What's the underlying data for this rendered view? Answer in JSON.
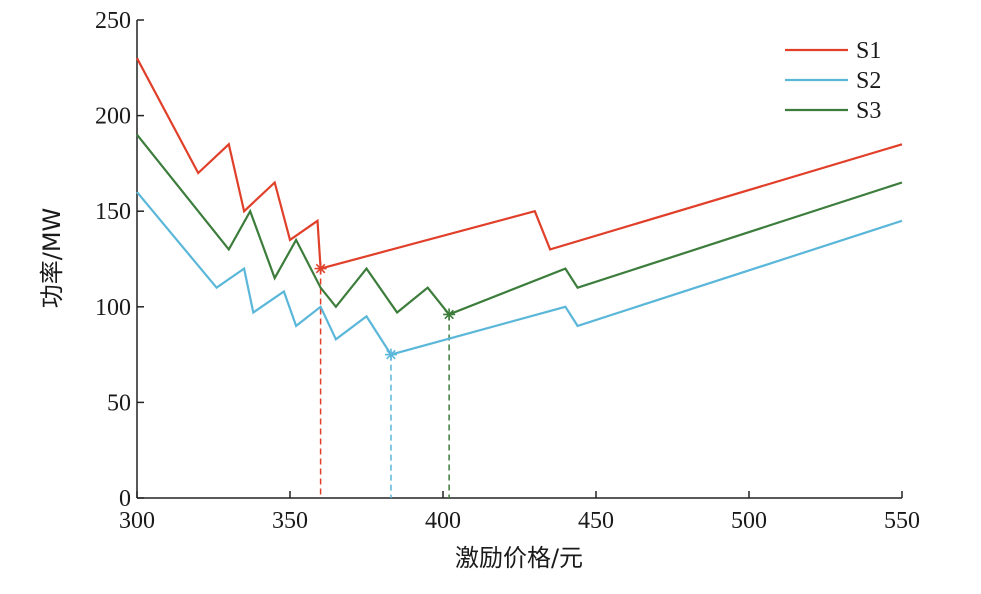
{
  "chart_data": {
    "type": "line",
    "xlabel": "激励价格/元",
    "ylabel": "功率/MW",
    "xlim": [
      300,
      550
    ],
    "ylim": [
      0,
      250
    ],
    "x_ticks": [
      300,
      350,
      400,
      450,
      500,
      550
    ],
    "y_ticks": [
      0,
      50,
      100,
      150,
      200,
      250
    ],
    "grid": false,
    "legend_position": "top-right",
    "series": [
      {
        "name": "S1",
        "color": "#e0402a",
        "points": [
          [
            300,
            230
          ],
          [
            320,
            170
          ],
          [
            330,
            185
          ],
          [
            335,
            150
          ],
          [
            345,
            165
          ],
          [
            350,
            135
          ],
          [
            359,
            145
          ],
          [
            360,
            120
          ],
          [
            430,
            150
          ],
          [
            435,
            130
          ],
          [
            550,
            185
          ]
        ],
        "optimum": [
          360,
          120
        ]
      },
      {
        "name": "S2",
        "color": "#5bb7d9",
        "points": [
          [
            300,
            160
          ],
          [
            326,
            110
          ],
          [
            335,
            120
          ],
          [
            338,
            97
          ],
          [
            348,
            108
          ],
          [
            352,
            90
          ],
          [
            360,
            100
          ],
          [
            365,
            83
          ],
          [
            375,
            95
          ],
          [
            383,
            75
          ],
          [
            440,
            100
          ],
          [
            444,
            90
          ],
          [
            550,
            145
          ]
        ],
        "optimum": [
          383,
          75
        ]
      },
      {
        "name": "S3",
        "color": "#3c7d3c",
        "points": [
          [
            300,
            190
          ],
          [
            330,
            130
          ],
          [
            337,
            150
          ],
          [
            345,
            115
          ],
          [
            352,
            135
          ],
          [
            360,
            110
          ],
          [
            365,
            100
          ],
          [
            375,
            120
          ],
          [
            385,
            97
          ],
          [
            395,
            110
          ],
          [
            402,
            96
          ],
          [
            440,
            120
          ],
          [
            444,
            110
          ],
          [
            550,
            165
          ]
        ],
        "optimum": [
          402,
          96
        ]
      }
    ]
  }
}
